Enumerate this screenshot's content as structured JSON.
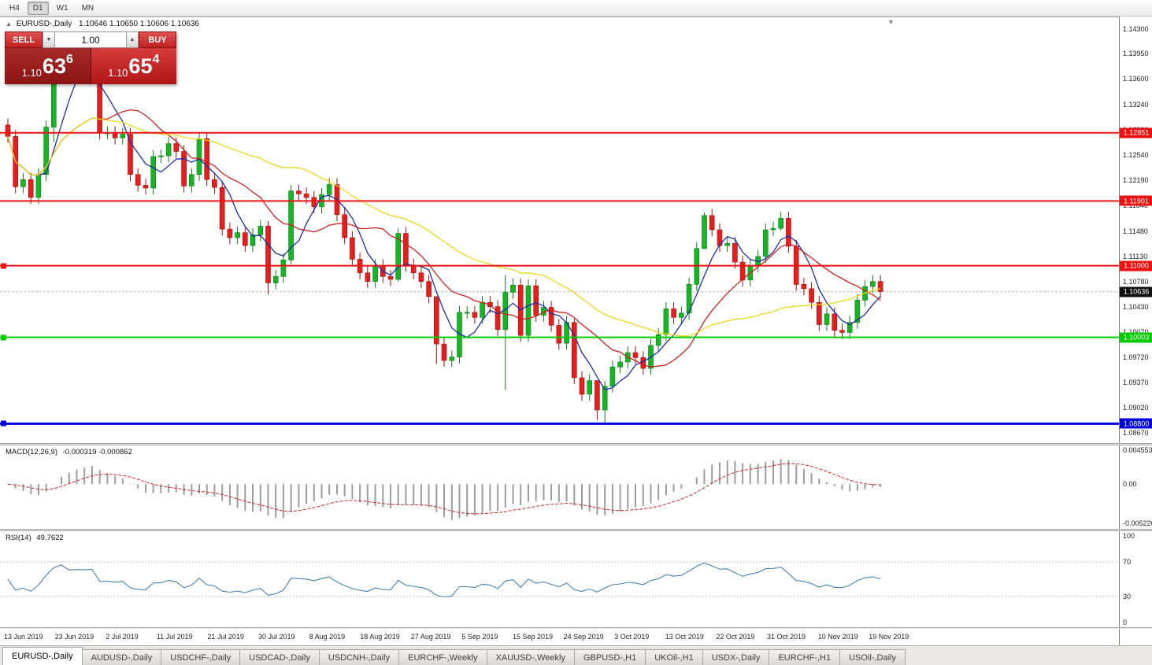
{
  "toolbar": {
    "timeframes": [
      {
        "label": "H4",
        "active": false
      },
      {
        "label": "D1",
        "active": true
      },
      {
        "label": "W1",
        "active": false
      },
      {
        "label": "MN",
        "active": false
      }
    ]
  },
  "chart": {
    "title_symbol": "EURUSD-,Daily",
    "title_ohlc": "1.10646 1.10650 1.10606 1.10636",
    "trade_panel": {
      "sell_label": "SELL",
      "buy_label": "BUY",
      "volume": "1.00",
      "sell_price": {
        "big": "1.10",
        "main": "63",
        "sup": "6"
      },
      "buy_price": {
        "big": "1.10",
        "main": "65",
        "sup": "4"
      }
    },
    "price_axis": [
      "1.14300",
      "1.13950",
      "1.13600",
      "1.13240",
      "1.12890",
      "1.12540",
      "1.12190",
      "1.11840",
      "1.11480",
      "1.11130",
      "1.10780",
      "1.10430",
      "1.10070",
      "1.09720",
      "1.09370",
      "1.09020",
      "1.08670"
    ],
    "date_axis": [
      "13 Jun 2019",
      "23 Jun 2019",
      "2 Jul 2019",
      "11 Jul 2019",
      "21 Jul 2019",
      "30 Jul 2019",
      "8 Aug 2019",
      "18 Aug 2019",
      "27 Aug 2019",
      "5 Sep 2019",
      "15 Sep 2019",
      "24 Sep 2019",
      "3 Oct 2019",
      "13 Oct 2019",
      "22 Oct 2019",
      "31 Oct 2019",
      "10 Nov 2019",
      "19 Nov 2019"
    ],
    "levels": [
      {
        "price": 1.12851,
        "label": "1.12851",
        "color": "#ee1111",
        "width": 2,
        "handle": false
      },
      {
        "price": 1.11901,
        "label": "1.11901",
        "color": "#ee1111",
        "width": 2,
        "handle": false
      },
      {
        "price": 1.11,
        "label": "1.11000",
        "color": "#ee1111",
        "width": 2,
        "handle": true
      },
      {
        "price": 1.10003,
        "label": "1.10003",
        "color": "#00cc00",
        "width": 2,
        "handle": true
      },
      {
        "price": 1.088,
        "label": "1.08800",
        "color": "#0000dd",
        "width": 3,
        "handle": true
      }
    ],
    "current_price": {
      "value": 1.10636,
      "label": "1.10636",
      "color": "#101010"
    }
  },
  "chart_data": {
    "type": "candlestick",
    "symbol": "EURUSD-",
    "timeframe": "Daily",
    "y_range": [
      1.0853,
      1.1447
    ],
    "first_open": 1.1296,
    "wick": 0.0009,
    "closes": [
      1.128,
      1.121,
      1.122,
      1.1195,
      1.1227,
      1.1293,
      1.1368,
      1.1399,
      1.1365,
      1.137,
      1.1368,
      1.1373,
      1.1285,
      1.1285,
      1.1278,
      1.1283,
      1.1227,
      1.1212,
      1.1208,
      1.1252,
      1.1253,
      1.127,
      1.1259,
      1.1211,
      1.1227,
      1.1277,
      1.122,
      1.1209,
      1.1151,
      1.1139,
      1.1146,
      1.1128,
      1.1143,
      1.1155,
      1.1076,
      1.1085,
      1.1108,
      1.1204,
      1.12,
      1.1195,
      1.1182,
      1.1199,
      1.1213,
      1.1171,
      1.1139,
      1.1109,
      1.109,
      1.1078,
      1.11,
      1.1085,
      1.1081,
      1.1145,
      1.1101,
      1.109,
      1.1078,
      1.1057,
      1.0991,
      1.0968,
      1.0973,
      1.1035,
      1.1035,
      1.1028,
      1.1049,
      1.1043,
      1.1011,
      1.1063,
      1.1073,
      1.1003,
      1.1072,
      1.1031,
      1.1042,
      1.1017,
      1.0992,
      1.1021,
      1.0944,
      1.0921,
      1.094,
      1.0899,
      1.0932,
      1.0959,
      1.0966,
      1.0979,
      1.0972,
      1.0957,
      1.0989,
      1.1004,
      1.104,
      1.1028,
      1.1034,
      1.1074,
      1.1124,
      1.117,
      1.115,
      1.1128,
      1.1131,
      1.1105,
      1.108,
      1.11,
      1.1113,
      1.115,
      1.1152,
      1.1166,
      1.1127,
      1.1074,
      1.1068,
      1.1049,
      1.1018,
      1.1033,
      1.101,
      1.1007,
      1.1021,
      1.1052,
      1.1071,
      1.1078,
      1.1064
    ],
    "wick_overrides": {
      "6": [
        1.1372,
        1.1272
      ],
      "7": [
        1.1412,
        1.1358
      ],
      "34": [
        1.1162,
        1.106
      ],
      "37": [
        1.1212,
        1.1102
      ],
      "51": [
        1.1152,
        1.1078
      ],
      "56": [
        1.1,
        1.0963
      ],
      "65": [
        1.1087,
        1.0927
      ],
      "74": [
        1.1026,
        1.0935
      ],
      "77": [
        1.0934,
        1.0885
      ],
      "78": [
        1.094,
        1.0879
      ],
      "91": [
        1.1174,
        1.114
      ],
      "101": [
        1.1175,
        1.1149
      ]
    },
    "candle_colors": {
      "up": "#17b525",
      "up_stroke": "#0b7d16",
      "down": "#e61e1e",
      "down_stroke": "#9c0f0f"
    },
    "moving_averages": [
      {
        "period": 5,
        "color": "#1a2ea8"
      },
      {
        "period": 13,
        "color": "#cf1f1f"
      },
      {
        "period": 34,
        "color": "#ecd51b"
      }
    ],
    "macd": {
      "label": "MACD(12,26,9)",
      "values": "-0.000319 -0.000862",
      "fast": 12,
      "slow": 26,
      "signal": 9,
      "axis_labels": [
        "0.0045536",
        "0.00",
        "-0.0052205"
      ],
      "range": [
        -0.006,
        0.0052
      ],
      "histogram_color": "#9c9c9c",
      "signal_color": "#cc2222"
    },
    "rsi": {
      "label": "RSI(14)",
      "value": "49.7622",
      "period": 14,
      "axis_labels": [
        "100",
        "70",
        "30",
        "0"
      ],
      "guides": [
        70,
        30
      ],
      "color": "#4682b4"
    }
  },
  "tabs": [
    {
      "label": "EURUSD-,Daily",
      "active": true
    },
    {
      "label": "AUDUSD-,Daily",
      "active": false
    },
    {
      "label": "USDCHF-,Daily",
      "active": false
    },
    {
      "label": "USDCAD-,Daily",
      "active": false
    },
    {
      "label": "USDCNH-,Daily",
      "active": false
    },
    {
      "label": "EURCHF-,Weekly",
      "active": false
    },
    {
      "label": "XAUUSD-,Weekly",
      "active": false
    },
    {
      "label": "GBPUSD-,H1",
      "active": false
    },
    {
      "label": "UKOil-,H1",
      "active": false
    },
    {
      "label": "USDX-,Daily",
      "active": false
    },
    {
      "label": "EURCHF-,H1",
      "active": false
    },
    {
      "label": "USOil-,Daily",
      "active": false
    }
  ]
}
